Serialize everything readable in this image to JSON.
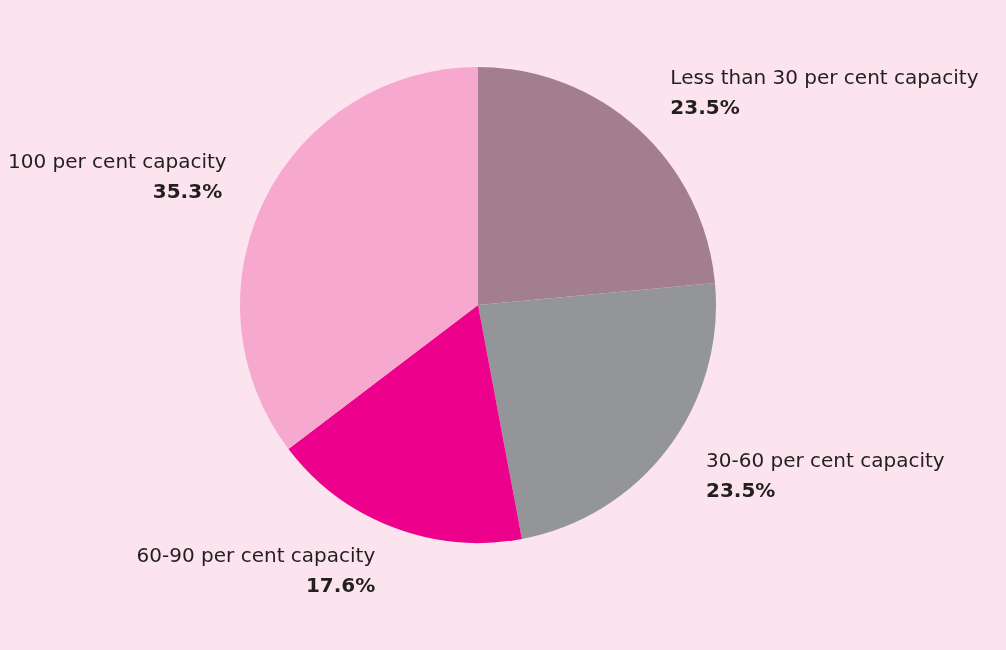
{
  "chart_data": {
    "type": "pie",
    "categories": [
      "Less than 30 per cent capacity",
      "30-60 per cent capacity",
      "60-90 per cent capacity",
      "100 per cent capacity"
    ],
    "values": [
      23.5,
      23.5,
      17.6,
      35.3
    ],
    "colors": [
      "#a37e8e",
      "#939598",
      "#ec008c",
      "#f7a8cf"
    ],
    "value_labels": [
      "23.5%",
      "23.5%",
      "17.6%",
      "35.3%"
    ],
    "legend": false
  }
}
